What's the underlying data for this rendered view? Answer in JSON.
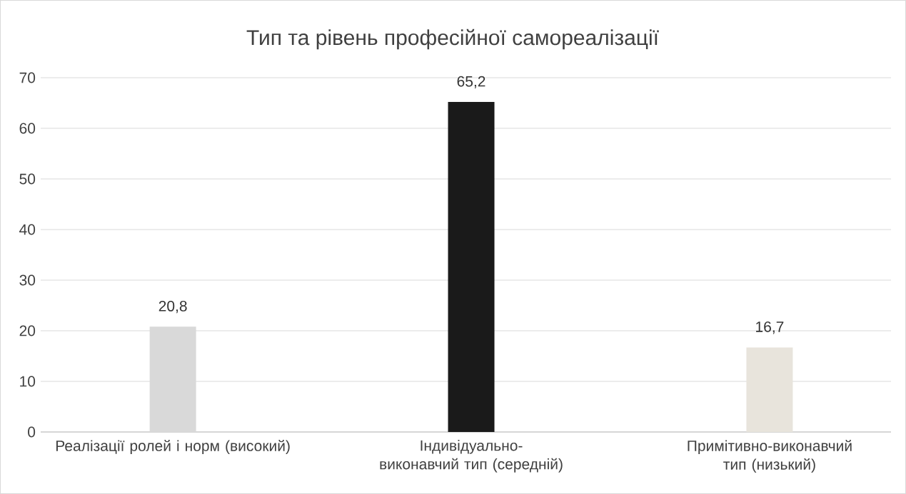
{
  "chart_data": {
    "type": "bar",
    "title": "Тип та рівень професійної самореалізації",
    "categories": [
      "Реалізації ролей і норм (високий)",
      "Індивідуально-виконавчий тип (середній)",
      "Примітивно-виконавчий тип (низький)"
    ],
    "values": [
      20.8,
      65.2,
      16.7
    ],
    "value_labels": [
      "20,8",
      "65,2",
      "16,7"
    ],
    "colors": [
      "#d9d9d9",
      "#1a1a1a",
      "#e8e4dc"
    ],
    "ylim": [
      0,
      70
    ],
    "yticks": [
      0,
      10,
      20,
      30,
      40,
      50,
      60,
      70
    ],
    "grid": "y"
  }
}
